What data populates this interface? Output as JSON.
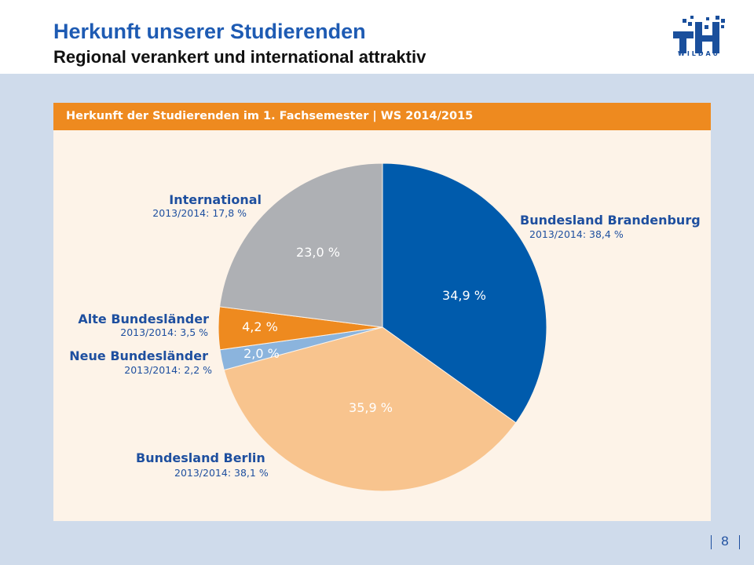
{
  "header": {
    "title": "Herkunft unserer Studierenden",
    "subtitle": "Regional verankert und international attraktiv",
    "logo_text": "WILDAU",
    "logo_icon": "th-wildau-logo",
    "colors": {
      "title": "#1e5bb3",
      "accent": "#ee8a1f"
    }
  },
  "panel": {
    "heading": "Herkunft der Studierenden im 1. Fachsemester | WS 2014/2015"
  },
  "chart_data": {
    "type": "pie",
    "title": "Herkunft der Studierenden im 1. Fachsemester | WS 2014/2015",
    "slices": [
      {
        "name": "Bundesland Brandenburg",
        "value": 34.9,
        "label": "34,9 %",
        "previous": "2013/2014: 38,4 %",
        "color": "#005bac"
      },
      {
        "name": "Bundesland Berlin",
        "value": 35.9,
        "label": "35,9 %",
        "previous": "2013/2014: 38,1 %",
        "color": "#f8c48e"
      },
      {
        "name": "Neue Bundesländer",
        "value": 2.0,
        "label": "2,0 %",
        "previous": "2013/2014: 2,2 %",
        "color": "#8bb4dd"
      },
      {
        "name": "Alte Bundesländer",
        "value": 4.2,
        "label": "4,2 %",
        "previous": "2013/2014: 3,5 %",
        "color": "#ee8a1f"
      },
      {
        "name": "International",
        "value": 23.0,
        "label": "23,0 %",
        "previous": "2013/2014: 17,8 %",
        "color": "#aeb0b4"
      }
    ],
    "legend": "none"
  },
  "footer": {
    "page_number": "8"
  }
}
